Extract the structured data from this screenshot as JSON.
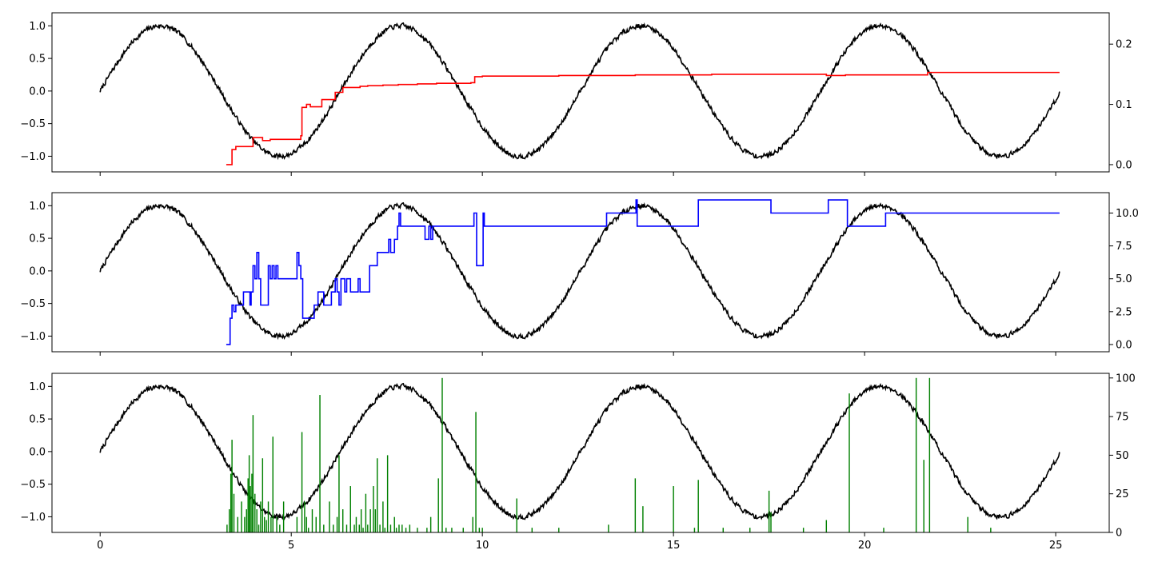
{
  "chart_data": [
    {
      "type": "line",
      "panel": "top",
      "xlim": [
        -1.26,
        26.4
      ],
      "ylim": [
        -1.24,
        1.2
      ],
      "y2lim": [
        -0.012,
        0.252
      ],
      "x_ticks": [
        0,
        5,
        10,
        15,
        20,
        25
      ],
      "x_tick_labels_visible": false,
      "y_ticks": [
        -1.0,
        -0.5,
        0.0,
        0.5,
        1.0
      ],
      "y_tick_labels": [
        "−1.0",
        "−0.5",
        "0.0",
        "0.5",
        "1.0"
      ],
      "y2_ticks": [
        0.0,
        0.1,
        0.2
      ],
      "y2_tick_labels": [
        "0.0",
        "0.1",
        "0.2"
      ],
      "grid": false,
      "series": [
        {
          "axis": "left",
          "color": "#000000",
          "signal": {
            "kind": "noisy-sine",
            "x_start": 0.0,
            "x_end": 25.1,
            "amplitude": 1.0,
            "period": 6.283,
            "noise": 0.035,
            "seed": 7
          }
        },
        {
          "axis": "right",
          "color": "#ff0000",
          "kind": "step",
          "points": [
            [
              3.3,
              0.0
            ],
            [
              3.42,
              0.0
            ],
            [
              3.45,
              0.025
            ],
            [
              3.55,
              0.03
            ],
            [
              3.95,
              0.03
            ],
            [
              4.0,
              0.045
            ],
            [
              4.2,
              0.045
            ],
            [
              4.25,
              0.04
            ],
            [
              4.45,
              0.042
            ],
            [
              5.2,
              0.042
            ],
            [
              5.25,
              0.048
            ],
            [
              5.28,
              0.095
            ],
            [
              5.4,
              0.1
            ],
            [
              5.5,
              0.096
            ],
            [
              5.75,
              0.096
            ],
            [
              5.8,
              0.108
            ],
            [
              6.1,
              0.108
            ],
            [
              6.15,
              0.12
            ],
            [
              6.35,
              0.128
            ],
            [
              6.8,
              0.13
            ],
            [
              7.0,
              0.131
            ],
            [
              7.4,
              0.132
            ],
            [
              7.8,
              0.133
            ],
            [
              8.3,
              0.134
            ],
            [
              8.8,
              0.135
            ],
            [
              9.7,
              0.136
            ],
            [
              9.8,
              0.146
            ],
            [
              10.0,
              0.147
            ],
            [
              12.0,
              0.148
            ],
            [
              13.5,
              0.148
            ],
            [
              14.0,
              0.149
            ],
            [
              15.0,
              0.149
            ],
            [
              16.0,
              0.15
            ],
            [
              17.5,
              0.15
            ],
            [
              18.5,
              0.15
            ],
            [
              19.0,
              0.148
            ],
            [
              19.5,
              0.149
            ],
            [
              21.6,
              0.149
            ],
            [
              21.65,
              0.153
            ],
            [
              25.1,
              0.153
            ]
          ]
        }
      ]
    },
    {
      "type": "line",
      "panel": "middle",
      "xlim": [
        -1.26,
        26.4
      ],
      "ylim": [
        -1.24,
        1.2
      ],
      "y2lim": [
        -0.55,
        11.55
      ],
      "x_ticks": [
        0,
        5,
        10,
        15,
        20,
        25
      ],
      "x_tick_labels_visible": false,
      "y_ticks": [
        -1.0,
        -0.5,
        0.0,
        0.5,
        1.0
      ],
      "y_tick_labels": [
        "−1.0",
        "−0.5",
        "0.0",
        "0.5",
        "1.0"
      ],
      "y2_ticks": [
        0.0,
        2.5,
        5.0,
        7.5,
        10.0
      ],
      "y2_tick_labels": [
        "0.0",
        "2.5",
        "5.0",
        "7.5",
        "10.0"
      ],
      "grid": false,
      "series": [
        {
          "axis": "left",
          "color": "#000000",
          "signal": {
            "kind": "noisy-sine",
            "x_start": 0.0,
            "x_end": 25.1,
            "amplitude": 1.0,
            "period": 6.283,
            "noise": 0.035,
            "seed": 7
          }
        },
        {
          "axis": "right",
          "color": "#0000ff",
          "kind": "step",
          "points": [
            [
              3.3,
              0.0
            ],
            [
              3.4,
              2.0
            ],
            [
              3.45,
              3.0
            ],
            [
              3.5,
              2.5
            ],
            [
              3.55,
              3.0
            ],
            [
              3.7,
              3.0
            ],
            [
              3.75,
              4.0
            ],
            [
              3.9,
              4.0
            ],
            [
              3.92,
              3.0
            ],
            [
              3.95,
              4.0
            ],
            [
              4.0,
              6.0
            ],
            [
              4.05,
              5.0
            ],
            [
              4.1,
              7.0
            ],
            [
              4.15,
              5.0
            ],
            [
              4.2,
              3.0
            ],
            [
              4.35,
              3.0
            ],
            [
              4.4,
              6.0
            ],
            [
              4.45,
              5.0
            ],
            [
              4.5,
              6.0
            ],
            [
              4.55,
              5.0
            ],
            [
              4.6,
              6.0
            ],
            [
              4.65,
              5.0
            ],
            [
              5.1,
              5.0
            ],
            [
              5.15,
              7.0
            ],
            [
              5.2,
              6.0
            ],
            [
              5.25,
              5.0
            ],
            [
              5.3,
              2.0
            ],
            [
              5.55,
              2.0
            ],
            [
              5.6,
              3.0
            ],
            [
              5.7,
              4.0
            ],
            [
              5.85,
              3.0
            ],
            [
              6.0,
              3.0
            ],
            [
              6.05,
              4.0
            ],
            [
              6.15,
              5.0
            ],
            [
              6.2,
              4.0
            ],
            [
              6.25,
              3.0
            ],
            [
              6.3,
              5.0
            ],
            [
              6.4,
              4.0
            ],
            [
              6.45,
              5.0
            ],
            [
              6.55,
              4.0
            ],
            [
              6.7,
              4.0
            ],
            [
              6.75,
              5.0
            ],
            [
              6.8,
              4.0
            ],
            [
              7.0,
              4.0
            ],
            [
              7.05,
              6.0
            ],
            [
              7.2,
              6.0
            ],
            [
              7.25,
              7.0
            ],
            [
              7.5,
              7.0
            ],
            [
              7.55,
              8.0
            ],
            [
              7.6,
              7.0
            ],
            [
              7.7,
              8.0
            ],
            [
              7.78,
              9.0
            ],
            [
              7.82,
              10.0
            ],
            [
              7.86,
              9.0
            ],
            [
              8.45,
              9.0
            ],
            [
              8.5,
              8.0
            ],
            [
              8.6,
              9.0
            ],
            [
              8.65,
              8.0
            ],
            [
              8.7,
              9.0
            ],
            [
              9.75,
              9.0
            ],
            [
              9.78,
              10.0
            ],
            [
              9.85,
              6.0
            ],
            [
              10.0,
              6.0
            ],
            [
              10.02,
              10.0
            ],
            [
              10.05,
              9.0
            ],
            [
              13.2,
              9.0
            ],
            [
              13.25,
              10.0
            ],
            [
              14.0,
              10.0
            ],
            [
              14.02,
              11.0
            ],
            [
              14.05,
              9.0
            ],
            [
              15.6,
              9.0
            ],
            [
              15.65,
              11.0
            ],
            [
              17.5,
              11.0
            ],
            [
              17.55,
              10.0
            ],
            [
              19.0,
              10.0
            ],
            [
              19.05,
              11.0
            ],
            [
              19.5,
              11.0
            ],
            [
              19.55,
              9.0
            ],
            [
              20.5,
              9.0
            ],
            [
              20.55,
              10.0
            ],
            [
              25.1,
              10.0
            ]
          ]
        }
      ]
    },
    {
      "type": "bar",
      "panel": "bottom",
      "xlim": [
        -1.26,
        26.4
      ],
      "ylim": [
        -1.24,
        1.2
      ],
      "y2lim": [
        0,
        103
      ],
      "x_ticks": [
        0,
        5,
        10,
        15,
        20,
        25
      ],
      "x_tick_labels": [
        "0",
        "5",
        "10",
        "15",
        "20",
        "25"
      ],
      "y_ticks": [
        -1.0,
        -0.5,
        0.0,
        0.5,
        1.0
      ],
      "y_tick_labels": [
        "−1.0",
        "−0.5",
        "0.0",
        "0.5",
        "1.0"
      ],
      "y2_ticks": [
        0,
        25,
        50,
        75,
        100
      ],
      "y2_tick_labels": [
        "0",
        "25",
        "50",
        "75",
        "100"
      ],
      "grid": false,
      "series": [
        {
          "axis": "left",
          "color": "#000000",
          "signal": {
            "kind": "noisy-sine",
            "x_start": 0.0,
            "x_end": 25.1,
            "amplitude": 1.0,
            "period": 6.283,
            "noise": 0.035,
            "seed": 7
          }
        },
        {
          "axis": "right",
          "color": "#008000",
          "kind": "bars",
          "bar_width": 0.03,
          "bars": [
            [
              3.32,
              5
            ],
            [
              3.38,
              15
            ],
            [
              3.42,
              38
            ],
            [
              3.45,
              60
            ],
            [
              3.5,
              25
            ],
            [
              3.6,
              10
            ],
            [
              3.7,
              20
            ],
            [
              3.78,
              10
            ],
            [
              3.83,
              15
            ],
            [
              3.87,
              35
            ],
            [
              3.9,
              50
            ],
            [
              3.93,
              30
            ],
            [
              3.97,
              38
            ],
            [
              4.0,
              76
            ],
            [
              4.05,
              25
            ],
            [
              4.1,
              15
            ],
            [
              4.15,
              5
            ],
            [
              4.2,
              20
            ],
            [
              4.25,
              48
            ],
            [
              4.3,
              10
            ],
            [
              4.35,
              8
            ],
            [
              4.4,
              20
            ],
            [
              4.47,
              10
            ],
            [
              4.52,
              62
            ],
            [
              4.62,
              10
            ],
            [
              4.7,
              5
            ],
            [
              4.8,
              20
            ],
            [
              5.15,
              10
            ],
            [
              5.28,
              65
            ],
            [
              5.35,
              20
            ],
            [
              5.4,
              10
            ],
            [
              5.45,
              3
            ],
            [
              5.55,
              15
            ],
            [
              5.65,
              10
            ],
            [
              5.75,
              89
            ],
            [
              5.85,
              5
            ],
            [
              6.0,
              20
            ],
            [
              6.1,
              5
            ],
            [
              6.2,
              10
            ],
            [
              6.25,
              50
            ],
            [
              6.35,
              15
            ],
            [
              6.45,
              5
            ],
            [
              6.55,
              30
            ],
            [
              6.65,
              5
            ],
            [
              6.7,
              10
            ],
            [
              6.78,
              5
            ],
            [
              6.83,
              15
            ],
            [
              6.88,
              3
            ],
            [
              6.95,
              25
            ],
            [
              7.0,
              5
            ],
            [
              7.07,
              15
            ],
            [
              7.15,
              30
            ],
            [
              7.2,
              15
            ],
            [
              7.25,
              48
            ],
            [
              7.32,
              5
            ],
            [
              7.4,
              20
            ],
            [
              7.45,
              3
            ],
            [
              7.52,
              50
            ],
            [
              7.6,
              5
            ],
            [
              7.7,
              10
            ],
            [
              7.75,
              3
            ],
            [
              7.82,
              5
            ],
            [
              7.9,
              5
            ],
            [
              8.0,
              3
            ],
            [
              8.1,
              5
            ],
            [
              8.3,
              3
            ],
            [
              8.55,
              3
            ],
            [
              8.65,
              10
            ],
            [
              8.85,
              35
            ],
            [
              8.95,
              100
            ],
            [
              9.05,
              3
            ],
            [
              9.2,
              3
            ],
            [
              9.5,
              3
            ],
            [
              9.75,
              10
            ],
            [
              9.83,
              78
            ],
            [
              9.92,
              3
            ],
            [
              10.0,
              3
            ],
            [
              10.9,
              22
            ],
            [
              11.3,
              3
            ],
            [
              12.0,
              3
            ],
            [
              13.3,
              5
            ],
            [
              14.0,
              35
            ],
            [
              14.2,
              17
            ],
            [
              15.0,
              30
            ],
            [
              15.55,
              3
            ],
            [
              15.65,
              34
            ],
            [
              16.3,
              3
            ],
            [
              17.0,
              3
            ],
            [
              17.5,
              27
            ],
            [
              17.55,
              13
            ],
            [
              18.4,
              3
            ],
            [
              19.0,
              8
            ],
            [
              19.6,
              90
            ],
            [
              20.5,
              3
            ],
            [
              21.35,
              100
            ],
            [
              21.55,
              47
            ],
            [
              21.7,
              100
            ],
            [
              22.7,
              10
            ],
            [
              23.3,
              3
            ]
          ]
        }
      ]
    }
  ]
}
